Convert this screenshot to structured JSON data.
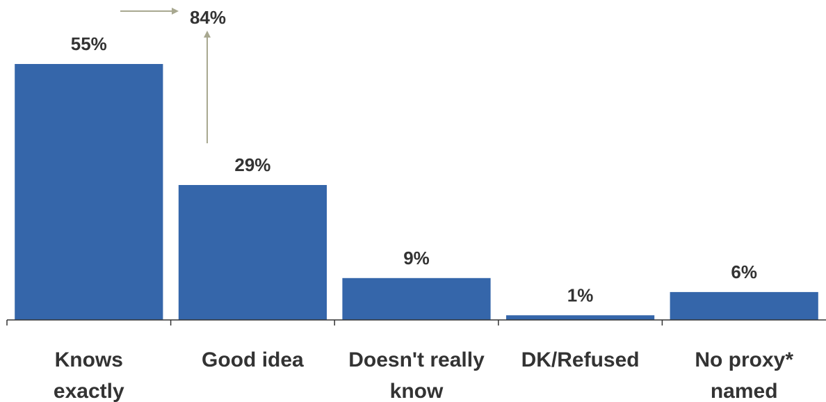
{
  "chart_data": {
    "type": "bar",
    "categories": [
      [
        "Knows",
        "exactly"
      ],
      [
        "Good idea"
      ],
      [
        "Doesn't really",
        "know"
      ],
      [
        "DK/Refused"
      ],
      [
        "No proxy*",
        "named"
      ]
    ],
    "values": [
      55,
      29,
      9,
      1,
      6
    ],
    "data_labels": [
      "55%",
      "29%",
      "9%",
      "1%",
      "6%"
    ],
    "ylim": [
      0,
      60
    ],
    "grid": false,
    "legend": "none",
    "bar_color": "#3566AA",
    "annotation": {
      "text": "84%",
      "combines": [
        "Knows exactly",
        "Good idea"
      ],
      "arrow_color": "#A8A890"
    }
  }
}
